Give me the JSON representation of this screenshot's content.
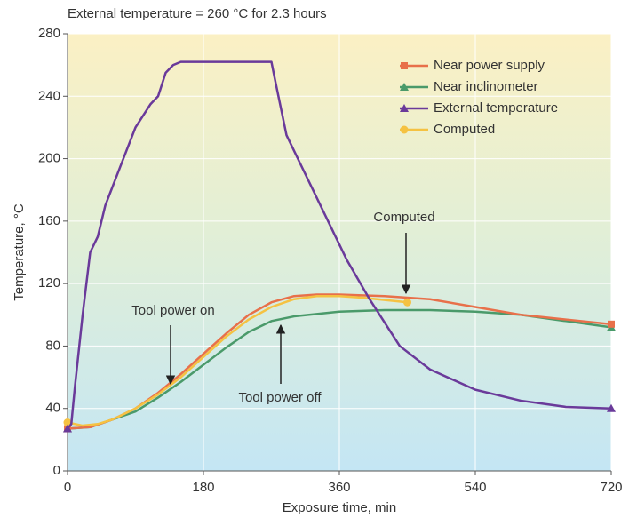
{
  "chart_data": {
    "type": "line",
    "title": "External temperature = 260 °C for 2.3 hours",
    "x_label": "Exposure time, min",
    "y_label": "Temperature, °C",
    "xlim": [
      0,
      720
    ],
    "xticks": [
      0,
      180,
      360,
      540,
      720
    ],
    "ylim": [
      0,
      280
    ],
    "yticks": [
      0,
      40,
      80,
      120,
      160,
      200,
      240,
      280
    ],
    "grid": true,
    "legend": "upper right",
    "series": [
      {
        "name": "Near power supply",
        "color": "#e8704a",
        "marker": "square",
        "x": [
          0,
          30,
          60,
          90,
          120,
          150,
          180,
          210,
          240,
          270,
          300,
          330,
          360,
          420,
          480,
          540,
          600,
          660,
          720
        ],
        "y": [
          27,
          28,
          33,
          40,
          50,
          62,
          75,
          88,
          100,
          108,
          112,
          113,
          113,
          112,
          110,
          105,
          100,
          97,
          94
        ]
      },
      {
        "name": "Near inclinometer",
        "color": "#4a9a6a",
        "marker": "triangle",
        "x": [
          0,
          30,
          60,
          90,
          120,
          150,
          180,
          210,
          240,
          270,
          300,
          360,
          420,
          480,
          540,
          600,
          660,
          720
        ],
        "y": [
          27,
          28,
          33,
          38,
          47,
          57,
          68,
          79,
          89,
          96,
          99,
          102,
          103,
          103,
          102,
          100,
          96,
          92
        ]
      },
      {
        "name": "External temperature",
        "color": "#6a3a9a",
        "marker": "triangle",
        "x": [
          0,
          5,
          10,
          20,
          30,
          40,
          50,
          70,
          90,
          110,
          120,
          130,
          140,
          150,
          270,
          275,
          290,
          310,
          340,
          370,
          400,
          440,
          480,
          540,
          600,
          660,
          720
        ],
        "y": [
          27,
          30,
          55,
          100,
          140,
          150,
          170,
          195,
          220,
          235,
          240,
          255,
          260,
          262,
          262,
          250,
          215,
          195,
          165,
          135,
          110,
          80,
          65,
          52,
          45,
          41,
          40
        ]
      },
      {
        "name": "Computed",
        "color": "#f5c242",
        "marker": "circle",
        "x": [
          0,
          20,
          40,
          60,
          90,
          120,
          150,
          180,
          210,
          240,
          270,
          300,
          330,
          360,
          390,
          450
        ],
        "y": [
          31,
          29,
          30,
          33,
          40,
          49,
          60,
          73,
          86,
          97,
          105,
          110,
          112,
          112,
          111,
          108
        ]
      }
    ],
    "annotations": [
      {
        "text": "Computed"
      },
      {
        "text": "Tool power on"
      },
      {
        "text": "Tool power off"
      }
    ]
  }
}
